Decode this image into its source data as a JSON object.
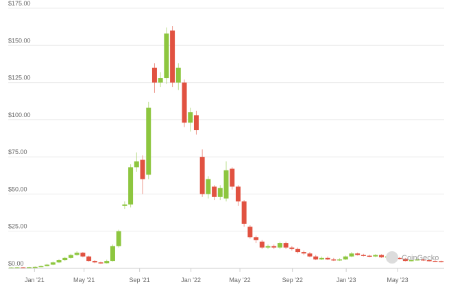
{
  "chart_data": {
    "type": "candlestick",
    "watermark": "CoinGecko",
    "up_color": "#8dc63f",
    "down_color": "#e15241",
    "grid": true,
    "open": [
      0.5,
      0.6,
      0.7,
      0.6,
      0.8,
      1.0,
      1.5,
      2.5,
      4,
      5.5,
      7,
      9,
      10.5,
      8,
      5,
      4,
      3.5,
      5,
      15,
      42,
      43,
      68,
      73,
      63,
      135,
      125,
      128,
      160,
      125,
      125,
      98,
      103,
      75,
      50,
      55,
      48,
      47,
      67,
      55,
      45,
      28,
      21,
      18,
      14,
      15,
      14,
      17,
      14,
      13,
      11,
      10,
      8,
      6,
      7,
      6,
      5.5,
      6,
      8,
      10,
      9,
      8.5,
      8,
      9,
      7.5,
      8,
      7,
      6.5,
      5,
      5.5,
      6,
      5.5,
      5,
      4.8
    ],
    "high": [
      0.8,
      0.9,
      0.9,
      1.0,
      1.3,
      1.9,
      3,
      4.6,
      6.2,
      7.8,
      9.8,
      11.5,
      11,
      8.5,
      5.5,
      4.5,
      5.8,
      16,
      26,
      45,
      70,
      78,
      76,
      112,
      138,
      132,
      162,
      163,
      138,
      127,
      108,
      106,
      80,
      62,
      56,
      56,
      72,
      68,
      56,
      46,
      29,
      22,
      19,
      16,
      16,
      18,
      18,
      15,
      14,
      12,
      11,
      9,
      8,
      8,
      7,
      6.8,
      8.6,
      11,
      10.6,
      9.8,
      9.2,
      9.6,
      9.5,
      8.6,
      8.5,
      7.6,
      7,
      6,
      6.5,
      6.4,
      6,
      5.4,
      5.2
    ],
    "low": [
      0.3,
      0.4,
      0.4,
      0.4,
      0.6,
      0.8,
      1.3,
      2.2,
      3.6,
      5,
      6.5,
      8.5,
      7.5,
      4.5,
      3.5,
      3,
      3.2,
      4.6,
      14,
      40,
      41,
      65,
      50,
      60,
      118,
      122,
      124,
      122,
      120,
      95,
      92,
      90,
      48,
      47,
      46,
      46,
      45,
      53,
      42,
      28,
      20,
      17,
      13,
      13,
      13,
      13,
      13,
      12,
      10,
      9,
      7.5,
      5.5,
      5.6,
      5.5,
      5,
      5,
      5.6,
      7.6,
      8.6,
      8,
      7.5,
      7.6,
      7,
      7,
      6.5,
      6,
      4.6,
      4.7,
      5.2,
      5,
      4.6,
      4.3,
      4
    ],
    "close": [
      0.6,
      0.7,
      0.6,
      0.8,
      1.0,
      1.5,
      2.5,
      4,
      5.5,
      7,
      9,
      10.5,
      8,
      5,
      4,
      3.5,
      5,
      15,
      25,
      43,
      68,
      72,
      60,
      108,
      125,
      128,
      158,
      125,
      135,
      98,
      105,
      93,
      50,
      60,
      48,
      54,
      66,
      55,
      45,
      30,
      21,
      19,
      14,
      15,
      14,
      17,
      14,
      13,
      11,
      10,
      8,
      6,
      7,
      6,
      5.5,
      6,
      8,
      10,
      9,
      8.5,
      8,
      9,
      7.5,
      8,
      7,
      6.5,
      5,
      5.5,
      6,
      5.5,
      5,
      4.8,
      4.5
    ],
    "xlim": [
      -0.5,
      72.5
    ],
    "xticks": [
      {
        "value": 3.9,
        "label": "Jan '21"
      },
      {
        "value": 12.2,
        "label": "May '21"
      },
      {
        "value": 21.5,
        "label": "Sep '21"
      },
      {
        "value": 30.1,
        "label": "Jan '22"
      },
      {
        "value": 38.3,
        "label": "May '22"
      },
      {
        "value": 47.1,
        "label": "Sep '22"
      },
      {
        "value": 56.1,
        "label": "Jan '23"
      },
      {
        "value": 64.7,
        "label": "May '23"
      }
    ],
    "ylim": [
      0,
      175
    ],
    "yticks": [
      {
        "value": 0,
        "label": "$0.00"
      },
      {
        "value": 25,
        "label": "$25.00"
      },
      {
        "value": 50,
        "label": "$50.00"
      },
      {
        "value": 75,
        "label": "$75.00"
      },
      {
        "value": 100,
        "label": "$100.00"
      },
      {
        "value": 125,
        "label": "$125.00"
      },
      {
        "value": 150,
        "label": "$150.00"
      },
      {
        "value": 175,
        "label": "$175.00"
      }
    ]
  }
}
